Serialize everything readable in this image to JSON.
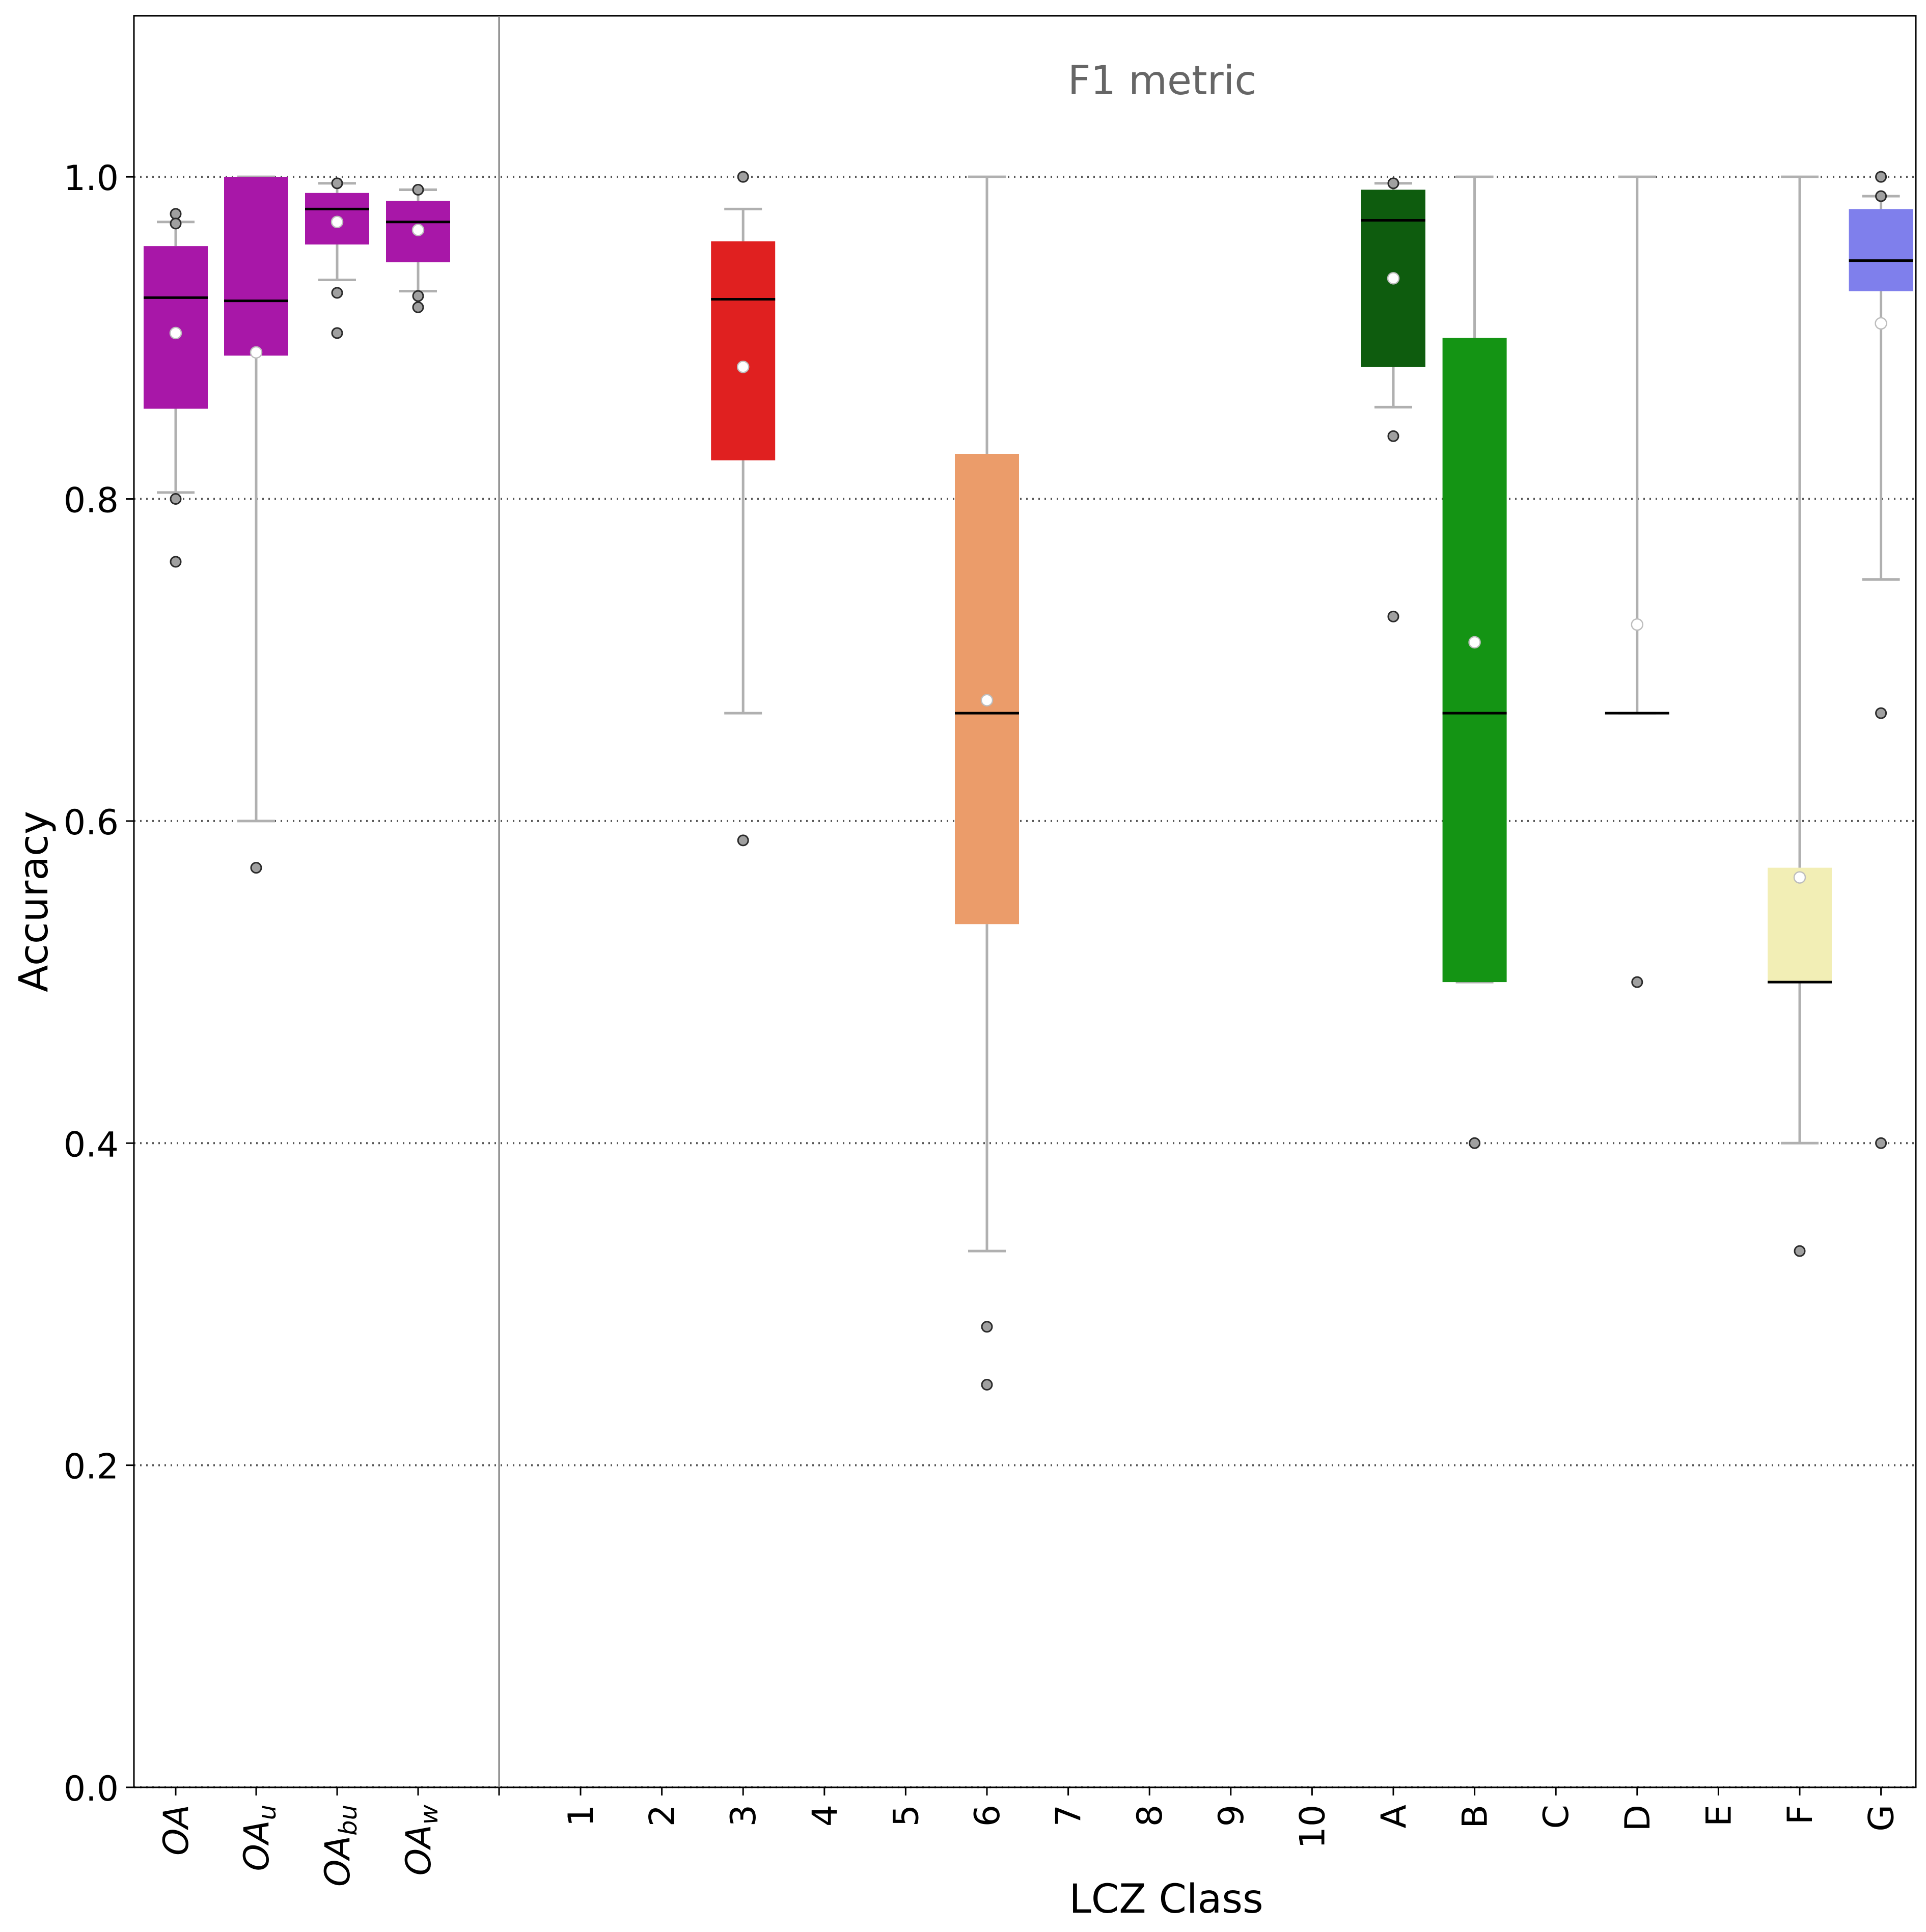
{
  "chart_data": {
    "type": "box",
    "annotation": "F1 metric",
    "xlabel": "LCZ Class",
    "ylabel": "Accuracy",
    "ylim": [
      0.0,
      1.1
    ],
    "yticks": [
      "0.0",
      "0.2",
      "0.4",
      "0.6",
      "0.8",
      "1.0"
    ],
    "grid": "horizontal dotted at 0.2 intervals",
    "overall_categories": [
      {
        "label": "OA",
        "sub": ""
      },
      {
        "label": "OA",
        "sub": "u"
      },
      {
        "label": "OA",
        "sub": "bu"
      },
      {
        "label": "OA",
        "sub": "w"
      }
    ],
    "boxes": [
      {
        "label": "OA",
        "color": "#a817a8",
        "q1": 0.856,
        "median": 0.925,
        "q3": 0.957,
        "whisker_low": 0.804,
        "whisker_high": 0.972,
        "mean": 0.903,
        "fliers": [
          0.977,
          0.971,
          0.8,
          0.761
        ]
      },
      {
        "label": "OAu",
        "color": "#a817a8",
        "q1": 0.889,
        "median": 0.923,
        "q3": 1.0,
        "whisker_low": 0.6,
        "whisker_high": 1.0,
        "mean": 0.891,
        "fliers": [
          0.571
        ]
      },
      {
        "label": "OAbu",
        "color": "#a817a8",
        "q1": 0.958,
        "median": 0.98,
        "q3": 0.99,
        "whisker_low": 0.936,
        "whisker_high": 0.996,
        "mean": 0.972,
        "fliers": [
          0.996,
          0.928,
          0.903
        ]
      },
      {
        "label": "OAw",
        "color": "#a817a8",
        "q1": 0.947,
        "median": 0.972,
        "q3": 0.985,
        "whisker_low": 0.929,
        "whisker_high": 0.992,
        "mean": 0.967,
        "fliers": [
          0.992,
          0.926,
          0.919
        ]
      },
      {
        "label": "1",
        "color": null
      },
      {
        "label": "2",
        "color": null
      },
      {
        "label": "3",
        "color": "#e02020",
        "q1": 0.824,
        "median": 0.924,
        "q3": 0.96,
        "whisker_low": 0.667,
        "whisker_high": 0.98,
        "mean": 0.882,
        "fliers": [
          1.0,
          0.588
        ]
      },
      {
        "label": "4",
        "color": null
      },
      {
        "label": "5",
        "color": null
      },
      {
        "label": "6",
        "color": "#eb9c6a",
        "q1": 0.536,
        "median": 0.667,
        "q3": 0.828,
        "whisker_low": 0.333,
        "whisker_high": 1.0,
        "mean": 0.675,
        "fliers": [
          0.286,
          0.25
        ]
      },
      {
        "label": "7",
        "color": null
      },
      {
        "label": "8",
        "color": null
      },
      {
        "label": "9",
        "color": null
      },
      {
        "label": "10",
        "color": null
      },
      {
        "label": "A",
        "color": "#0e5c0e",
        "q1": 0.882,
        "median": 0.973,
        "q3": 0.992,
        "whisker_low": 0.857,
        "whisker_high": 0.996,
        "mean": 0.937,
        "fliers": [
          0.996,
          0.839,
          0.727
        ]
      },
      {
        "label": "B",
        "color": "#149414",
        "q1": 0.5,
        "median": 0.667,
        "q3": 0.9,
        "whisker_low": 0.5,
        "whisker_high": 1.0,
        "mean": 0.711,
        "fliers": [
          0.4
        ]
      },
      {
        "label": "C",
        "color": null
      },
      {
        "label": "D",
        "color": "#1a1a1a",
        "q1": 0.667,
        "median": 0.667,
        "q3": 0.667,
        "whisker_low": 0.667,
        "whisker_high": 1.0,
        "mean": 0.722,
        "fliers": [
          0.5
        ]
      },
      {
        "label": "E",
        "color": null
      },
      {
        "label": "F",
        "color": "#f2eeb5",
        "q1": 0.5,
        "median": 0.5,
        "q3": 0.571,
        "whisker_low": 0.4,
        "whisker_high": 1.0,
        "mean": 0.565,
        "fliers": [
          0.333
        ]
      },
      {
        "label": "G",
        "color": "#7f7fec",
        "q1": 0.929,
        "median": 0.948,
        "q3": 0.98,
        "whisker_low": 0.75,
        "whisker_high": 0.988,
        "mean": 0.909,
        "fliers": [
          1.0,
          0.988,
          0.667,
          0.4
        ]
      }
    ]
  }
}
